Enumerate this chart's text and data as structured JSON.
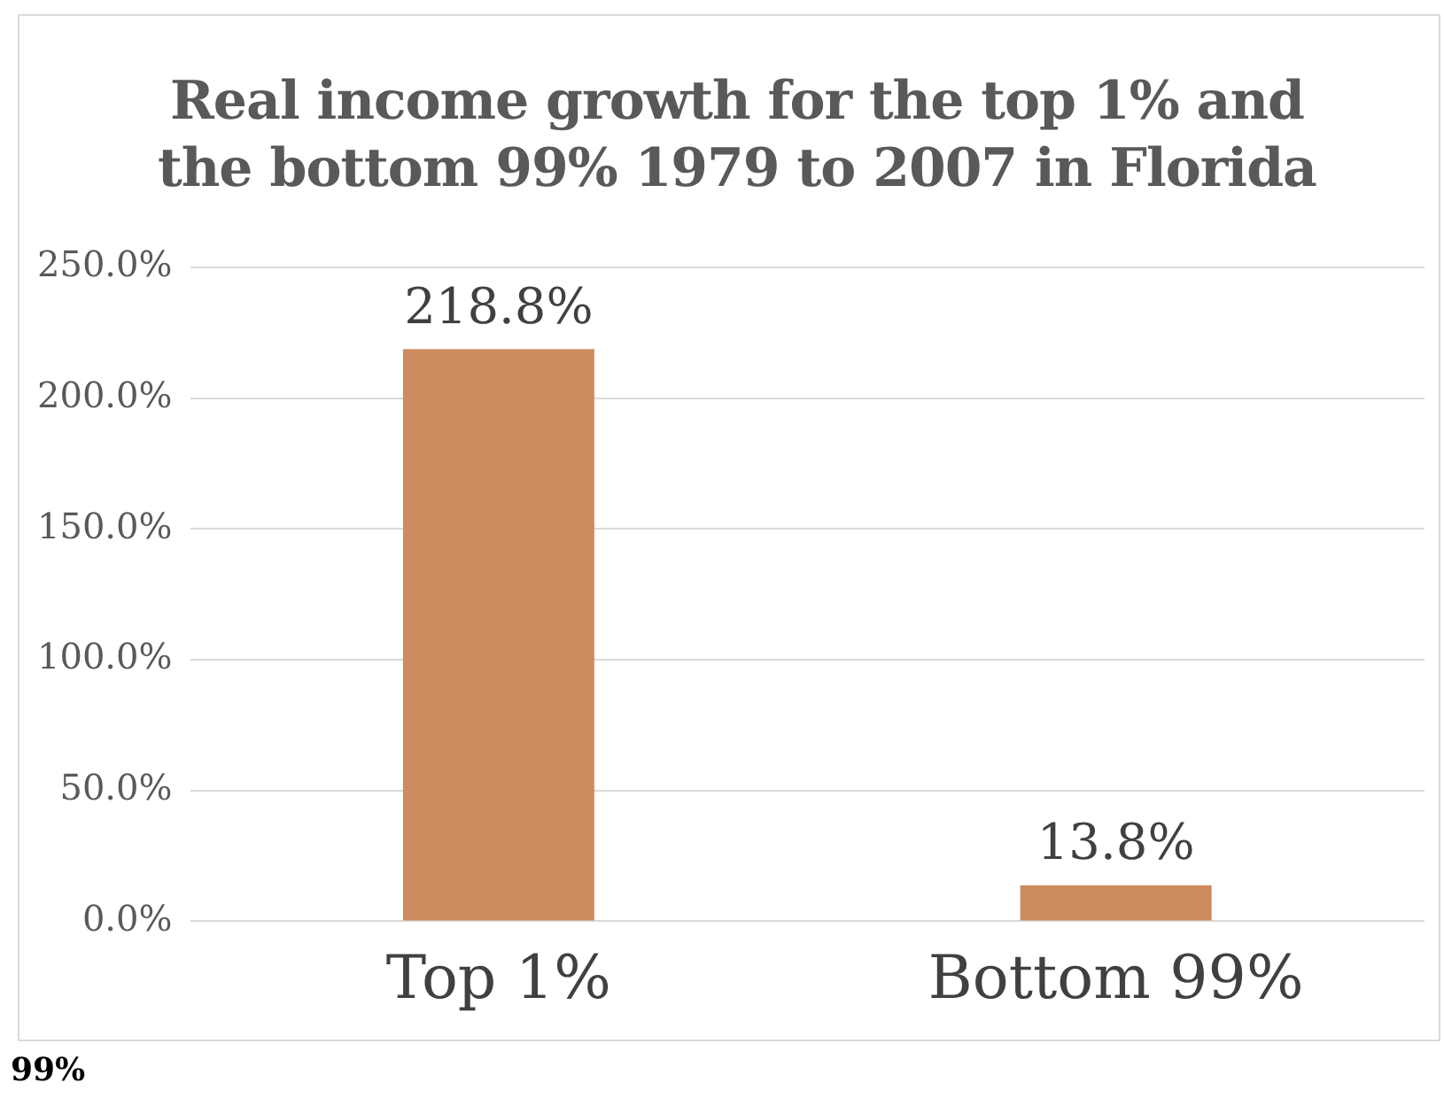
{
  "chart_data": {
    "type": "bar",
    "title": "Real income growth for the top 1% and the bottom 99% 1979 to 2007 in Florida",
    "categories": [
      "Top 1%",
      "Bottom 99%"
    ],
    "values": [
      218.8,
      13.8
    ],
    "value_labels": [
      "218.8%",
      "13.8%"
    ],
    "color": "#cd8c5e",
    "ylim": [
      0,
      250
    ],
    "yticks": [
      {
        "value": 0,
        "label": "0.0%"
      },
      {
        "value": 50,
        "label": "50.0%"
      },
      {
        "value": 100,
        "label": "100.0%"
      },
      {
        "value": 150,
        "label": "150.0%"
      },
      {
        "value": 200,
        "label": "200.0%"
      },
      {
        "value": 250,
        "label": "250.0%"
      }
    ],
    "grid": "y",
    "annotations": [
      "99%"
    ]
  }
}
